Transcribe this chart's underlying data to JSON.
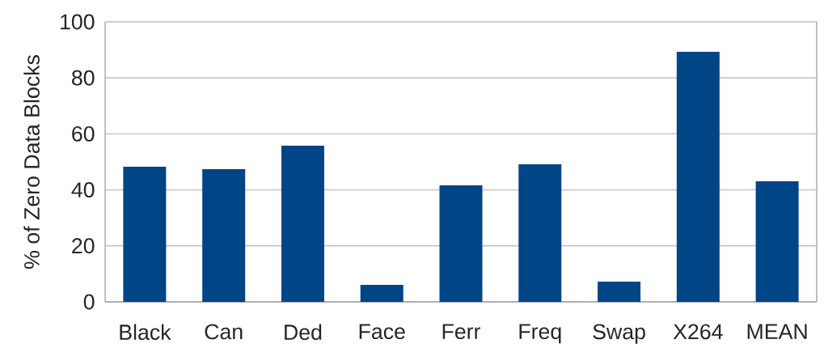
{
  "chart_data": {
    "type": "bar",
    "ylabel": "% of Zero Data Blocks",
    "categories": [
      "Black",
      "Can",
      "Ded",
      "Face",
      "Ferr",
      "Freq",
      "Swap",
      "X264",
      "MEAN"
    ],
    "values": [
      48.3,
      47.4,
      55.8,
      6.1,
      41.6,
      49.1,
      7.2,
      89.3,
      43.1
    ],
    "color": "#004586",
    "ylim": [
      0,
      100
    ],
    "yticks": [
      0,
      20,
      40,
      60,
      80,
      100
    ],
    "grid": "y"
  }
}
